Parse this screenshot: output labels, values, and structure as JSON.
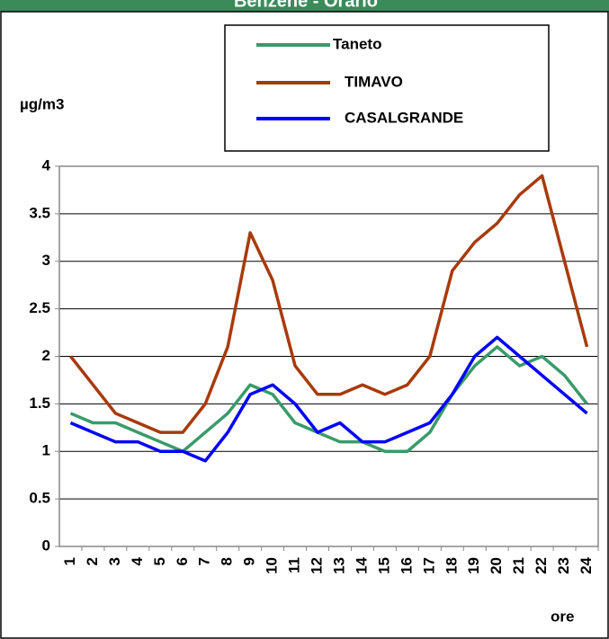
{
  "chart_data": {
    "type": "line",
    "title": "Benzene - Orario",
    "y_label": "µg/m3",
    "x_label": "ore",
    "categories": [
      "1",
      "2",
      "3",
      "4",
      "5",
      "6",
      "7",
      "8",
      "9",
      "10",
      "11",
      "12",
      "13",
      "14",
      "15",
      "16",
      "17",
      "18",
      "19",
      "20",
      "21",
      "22",
      "23",
      "24"
    ],
    "series": [
      {
        "name": "Taneto",
        "color": "#3a9a6a",
        "values": [
          1.4,
          1.3,
          1.3,
          1.2,
          1.1,
          1.0,
          1.2,
          1.4,
          1.7,
          1.6,
          1.3,
          1.2,
          1.1,
          1.1,
          1.0,
          1.0,
          1.2,
          1.6,
          1.9,
          2.1,
          1.9,
          2.0,
          1.8,
          1.5
        ]
      },
      {
        "name": "TIMAVO",
        "color": "#a83a0a",
        "values": [
          2.0,
          1.7,
          1.4,
          1.3,
          1.2,
          1.2,
          1.5,
          2.1,
          3.3,
          2.8,
          1.9,
          1.6,
          1.6,
          1.7,
          1.6,
          1.7,
          2.0,
          2.9,
          3.2,
          3.4,
          3.7,
          3.9,
          3.0,
          2.1
        ]
      },
      {
        "name": "CASALGRANDE",
        "color": "#0000ff",
        "values": [
          1.3,
          1.2,
          1.1,
          1.1,
          1.0,
          1.0,
          0.9,
          1.2,
          1.6,
          1.7,
          1.5,
          1.2,
          1.3,
          1.1,
          1.1,
          1.2,
          1.3,
          1.6,
          2.0,
          2.2,
          2.0,
          1.8,
          1.6,
          1.4
        ]
      }
    ],
    "ylim": [
      0,
      4
    ],
    "yticks": [
      0,
      0.5,
      1,
      1.5,
      2,
      2.5,
      3,
      3.5,
      4
    ],
    "grid": true
  }
}
